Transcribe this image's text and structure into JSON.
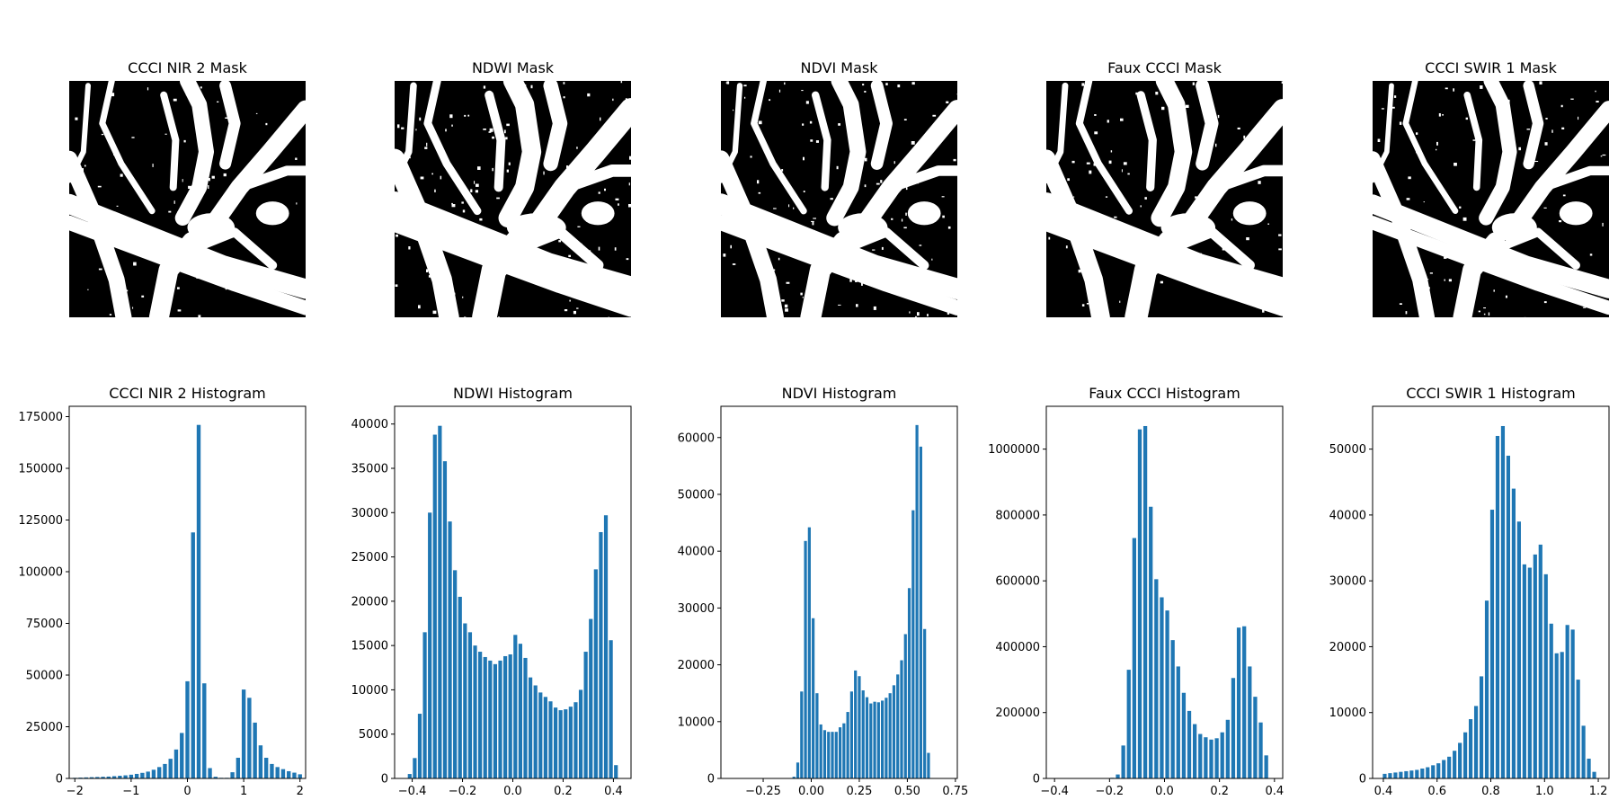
{
  "figure": {
    "background": "#ffffff",
    "bar_color": "#1f77b4"
  },
  "masks": [
    {
      "title": "CCCI NIR 2 Mask"
    },
    {
      "title": "NDWI Mask"
    },
    {
      "title": "NDVI Mask"
    },
    {
      "title": "Faux CCCI Mask"
    },
    {
      "title": "CCCI SWIR 1 Mask"
    }
  ],
  "chart_data": [
    {
      "type": "bar",
      "title": "CCCI NIR 2 Histogram",
      "xlim": [
        -2.1,
        2.1
      ],
      "ylim": [
        0,
        180000
      ],
      "xticks": [
        -2,
        -1,
        0,
        1,
        2
      ],
      "xtick_labels": [
        "−2",
        "−1",
        "0",
        "1",
        "2"
      ],
      "yticks": [
        0,
        25000,
        50000,
        75000,
        100000,
        125000,
        150000,
        175000
      ],
      "ytick_labels": [
        "0",
        "25000",
        "50000",
        "75000",
        "100000",
        "125000",
        "150000",
        "175000"
      ],
      "bar_width": 0.07,
      "x": [
        -2.0,
        -1.9,
        -1.8,
        -1.7,
        -1.6,
        -1.5,
        -1.4,
        -1.3,
        -1.2,
        -1.1,
        -1.0,
        -0.9,
        -0.8,
        -0.7,
        -0.6,
        -0.5,
        -0.4,
        -0.3,
        -0.2,
        -0.1,
        0.0,
        0.1,
        0.2,
        0.3,
        0.4,
        0.5,
        0.6,
        0.7,
        0.8,
        0.9,
        1.0,
        1.1,
        1.2,
        1.3,
        1.4,
        1.5,
        1.6,
        1.7,
        1.8,
        1.9,
        2.0
      ],
      "values": [
        300,
        400,
        500,
        600,
        700,
        800,
        900,
        1100,
        1300,
        1500,
        1800,
        2200,
        2700,
        3300,
        4200,
        5500,
        7000,
        9500,
        14000,
        22000,
        47000,
        119000,
        171000,
        46000,
        5000,
        800,
        300,
        300,
        3000,
        10000,
        43000,
        39000,
        27000,
        16000,
        10000,
        7000,
        5500,
        4500,
        3500,
        2800,
        2000
      ]
    },
    {
      "type": "bar",
      "title": "NDWI Histogram",
      "xlim": [
        -0.47,
        0.47
      ],
      "ylim": [
        0,
        42000
      ],
      "xticks": [
        -0.4,
        -0.2,
        0.0,
        0.2,
        0.4
      ],
      "xtick_labels": [
        "−0.4",
        "−0.2",
        "0.0",
        "0.2",
        "0.4"
      ],
      "yticks": [
        0,
        5000,
        10000,
        15000,
        20000,
        25000,
        30000,
        35000,
        40000
      ],
      "ytick_labels": [
        "0",
        "5000",
        "10000",
        "15000",
        "20000",
        "25000",
        "30000",
        "35000",
        "40000"
      ],
      "bar_width": 0.015,
      "x": [
        -0.41,
        -0.39,
        -0.37,
        -0.35,
        -0.33,
        -0.31,
        -0.29,
        -0.27,
        -0.25,
        -0.23,
        -0.21,
        -0.19,
        -0.17,
        -0.15,
        -0.13,
        -0.11,
        -0.09,
        -0.07,
        -0.05,
        -0.03,
        -0.01,
        0.01,
        0.03,
        0.05,
        0.07,
        0.09,
        0.11,
        0.13,
        0.15,
        0.17,
        0.19,
        0.21,
        0.23,
        0.25,
        0.27,
        0.29,
        0.31,
        0.33,
        0.35,
        0.37,
        0.39,
        0.41
      ],
      "values": [
        500,
        2300,
        7300,
        16500,
        30000,
        38800,
        39800,
        35800,
        29000,
        23500,
        20500,
        17500,
        16500,
        15000,
        14300,
        13700,
        13300,
        12900,
        13300,
        13800,
        14000,
        16200,
        15200,
        13600,
        11400,
        10500,
        9700,
        9200,
        8700,
        8000,
        7700,
        7800,
        8100,
        8600,
        10000,
        14300,
        18000,
        23600,
        27800,
        29700,
        15600,
        1500
      ]
    },
    {
      "type": "bar",
      "title": "NDVI Histogram",
      "xlim": [
        -0.47,
        0.76
      ],
      "ylim": [
        0,
        65500
      ],
      "xticks": [
        -0.25,
        0.0,
        0.25,
        0.5,
        0.75
      ],
      "xtick_labels": [
        "−0.25",
        "0.00",
        "0.25",
        "0.50",
        "0.75"
      ],
      "yticks": [
        0,
        10000,
        20000,
        30000,
        40000,
        50000,
        60000
      ],
      "ytick_labels": [
        "0",
        "10000",
        "20000",
        "30000",
        "40000",
        "50000",
        "60000"
      ],
      "bar_width": 0.015,
      "x": [
        -0.09,
        -0.07,
        -0.05,
        -0.03,
        -0.01,
        0.01,
        0.03,
        0.05,
        0.07,
        0.09,
        0.11,
        0.13,
        0.15,
        0.17,
        0.19,
        0.21,
        0.23,
        0.25,
        0.27,
        0.29,
        0.31,
        0.33,
        0.35,
        0.37,
        0.39,
        0.41,
        0.43,
        0.45,
        0.47,
        0.49,
        0.51,
        0.53,
        0.55,
        0.57,
        0.59,
        0.61,
        0.63,
        0.65,
        0.67
      ],
      "values": [
        300,
        2800,
        15300,
        41800,
        44200,
        28200,
        15000,
        9500,
        8500,
        8200,
        8200,
        8200,
        9000,
        9700,
        11700,
        15300,
        19000,
        18000,
        15500,
        14300,
        13200,
        13500,
        13400,
        13700,
        14200,
        15000,
        16400,
        18300,
        20800,
        25400,
        33500,
        47200,
        62200,
        58400,
        26300,
        4500,
        0,
        0,
        0
      ]
    },
    {
      "type": "bar",
      "title": "Faux CCCI Histogram",
      "xlim": [
        -0.43,
        0.43
      ],
      "ylim": [
        0,
        1130000
      ],
      "xticks": [
        -0.4,
        -0.2,
        0.0,
        0.2,
        0.4
      ],
      "xtick_labels": [
        "−0.4",
        "−0.2",
        "0.0",
        "0.2",
        "0.4"
      ],
      "yticks": [
        0,
        200000,
        400000,
        600000,
        800000,
        1000000
      ],
      "ytick_labels": [
        "0",
        "200000",
        "400000",
        "600000",
        "800000",
        "1000000"
      ],
      "bar_width": 0.014,
      "x": [
        -0.19,
        -0.17,
        -0.15,
        -0.13,
        -0.11,
        -0.09,
        -0.07,
        -0.05,
        -0.03,
        -0.01,
        0.01,
        0.03,
        0.05,
        0.07,
        0.09,
        0.11,
        0.13,
        0.15,
        0.17,
        0.19,
        0.21,
        0.23,
        0.25,
        0.27,
        0.29,
        0.31,
        0.33,
        0.35,
        0.37
      ],
      "values": [
        2000,
        12000,
        100000,
        330000,
        730000,
        1060000,
        1070000,
        825000,
        605000,
        550000,
        510000,
        420000,
        340000,
        260000,
        205000,
        165000,
        135000,
        125000,
        118000,
        122000,
        140000,
        178000,
        305000,
        458000,
        462000,
        340000,
        248000,
        170000,
        70000
      ]
    },
    {
      "type": "bar",
      "title": "CCCI SWIR 1 Histogram",
      "xlim": [
        0.36,
        1.24
      ],
      "ylim": [
        0,
        56500
      ],
      "xticks": [
        0.4,
        0.6,
        0.8,
        1.0,
        1.2
      ],
      "xtick_labels": [
        "0.4",
        "0.6",
        "0.8",
        "1.0",
        "1.2"
      ],
      "yticks": [
        0,
        10000,
        20000,
        30000,
        40000,
        50000
      ],
      "ytick_labels": [
        "0",
        "10000",
        "20000",
        "30000",
        "40000",
        "50000"
      ],
      "bar_width": 0.014,
      "x": [
        0.405,
        0.425,
        0.445,
        0.465,
        0.485,
        0.505,
        0.525,
        0.545,
        0.565,
        0.585,
        0.605,
        0.625,
        0.645,
        0.665,
        0.685,
        0.705,
        0.725,
        0.745,
        0.765,
        0.785,
        0.805,
        0.825,
        0.845,
        0.865,
        0.885,
        0.905,
        0.925,
        0.945,
        0.965,
        0.985,
        1.005,
        1.025,
        1.045,
        1.065,
        1.085,
        1.105,
        1.125,
        1.145,
        1.165,
        1.185
      ],
      "values": [
        700,
        800,
        900,
        1000,
        1100,
        1200,
        1300,
        1500,
        1700,
        2000,
        2300,
        2800,
        3300,
        4200,
        5400,
        7000,
        9000,
        11000,
        15500,
        27000,
        40800,
        52000,
        53500,
        49000,
        44000,
        39000,
        32500,
        32000,
        34000,
        35500,
        31000,
        23500,
        19000,
        19200,
        23300,
        22600,
        15000,
        8000,
        3000,
        1000
      ]
    }
  ]
}
